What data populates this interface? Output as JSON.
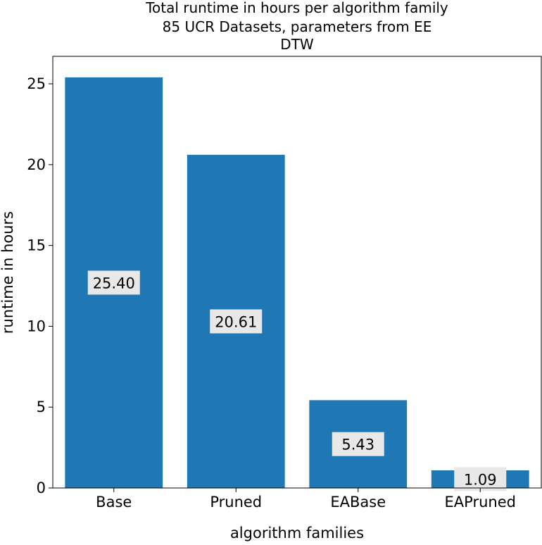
{
  "chart_data": {
    "type": "bar",
    "title_lines": [
      "Total runtime in hours per algorithm family",
      "85 UCR Datasets, parameters from EE",
      "DTW"
    ],
    "xlabel": "algorithm families",
    "ylabel": "runtime in hours",
    "categories": [
      "Base",
      "Pruned",
      "EABase",
      "EAPruned"
    ],
    "values": [
      25.4,
      20.61,
      5.43,
      1.09
    ],
    "value_labels": [
      "25.40",
      "20.61",
      "5.43",
      "1.09"
    ],
    "ylim": [
      0,
      26.7
    ],
    "yticks": [
      0,
      5,
      10,
      15,
      20,
      25
    ],
    "ytick_labels": [
      "0",
      "5",
      "10",
      "15",
      "20",
      "25"
    ],
    "grid": false,
    "legend": "none",
    "bar_color": "#1f77b4",
    "label_box_color": "#e8e8e8"
  }
}
